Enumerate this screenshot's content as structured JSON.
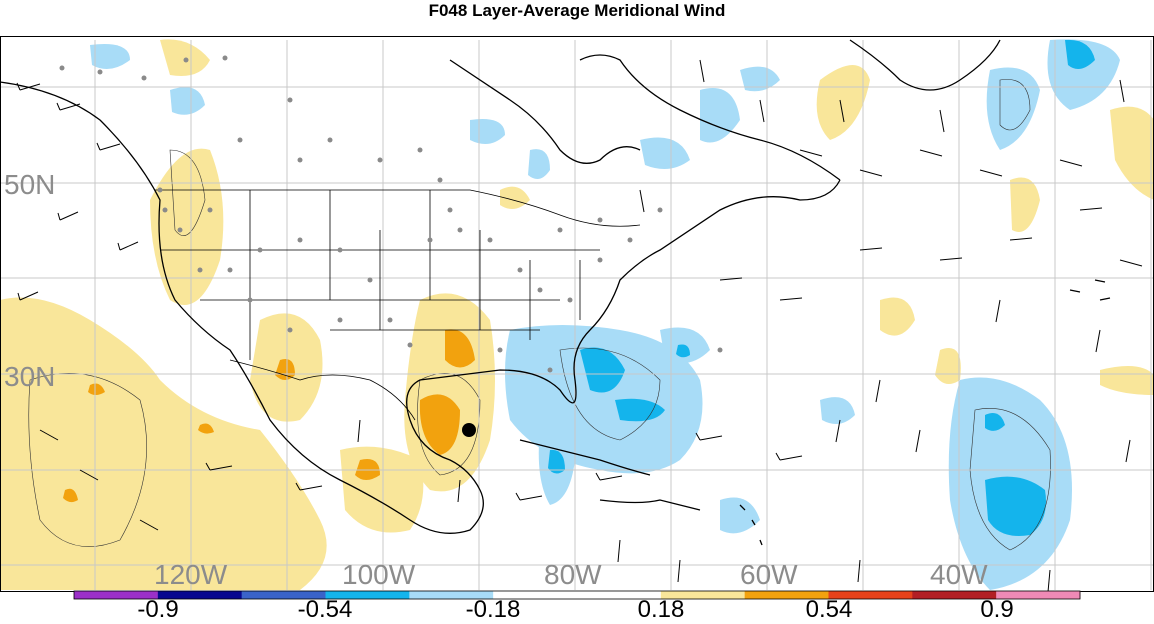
{
  "title": "F048 Layer-Average Meridional Wind",
  "map": {
    "lat_labels": [
      "50N",
      "30N"
    ],
    "lon_labels": [
      "120W",
      "100W",
      "80W",
      "60W",
      "40W"
    ],
    "label_color": "#8c8c8c",
    "grid_color": "#c8c8c8",
    "station_marker_color": "#8a8a8a"
  },
  "colorbar": {
    "labels": [
      "-0.9",
      "-0.54",
      "-0.18",
      "0.18",
      "0.54",
      "0.9"
    ],
    "colors": [
      "#9b30c8",
      "#07078f",
      "#3a63c9",
      "#14b4ec",
      "#a8dcf7",
      "#ffffff",
      "#ffffff",
      "#f9e69a",
      "#f2a20e",
      "#e6421a",
      "#b21f24",
      "#ef8ab6"
    ]
  },
  "chart_data": {
    "type": "heatmap",
    "title": "F048 Layer-Average Meridional Wind",
    "x_tick_labels": [
      "120W",
      "100W",
      "80W",
      "60W",
      "40W"
    ],
    "y_tick_labels": [
      "50N",
      "30N"
    ],
    "colorbar_ticks": [
      -0.9,
      -0.54,
      -0.18,
      0.18,
      0.54,
      0.9
    ]
  }
}
